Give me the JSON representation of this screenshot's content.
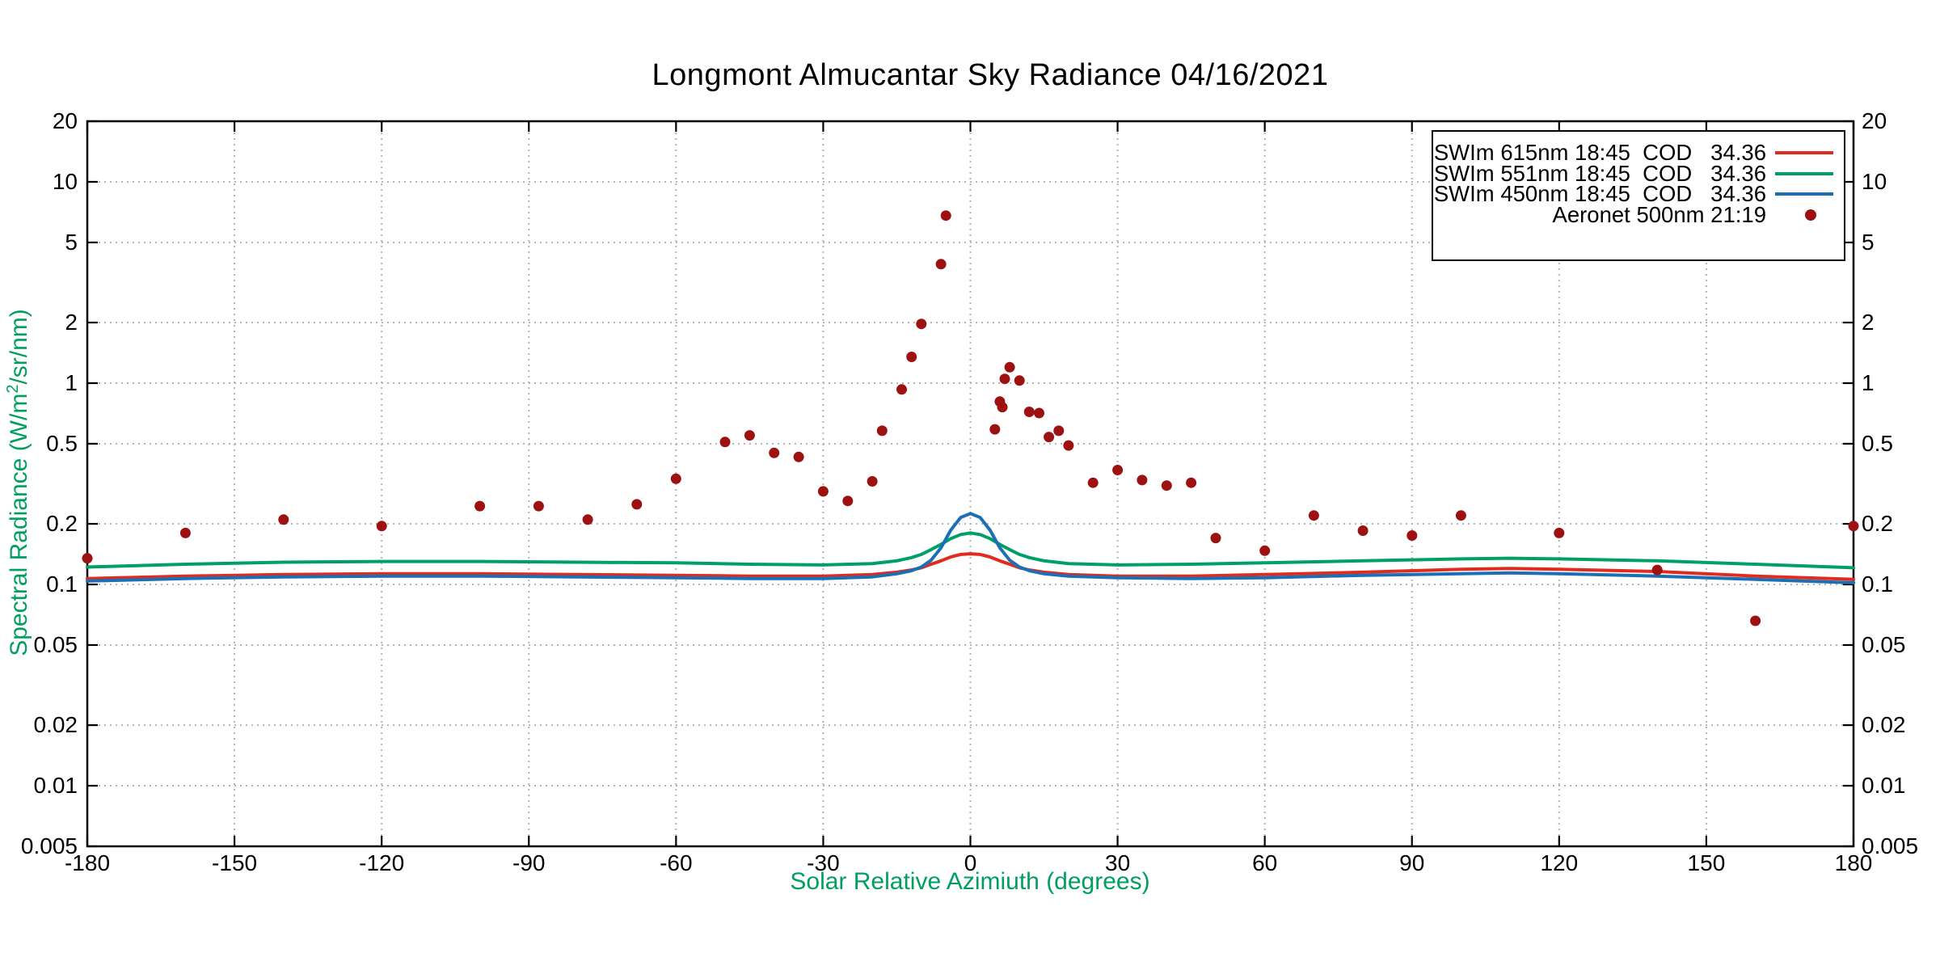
{
  "title": "Longmont Almucantar Sky Radiance 04/16/2021",
  "chart_data": {
    "type": "line+scatter",
    "title": "Longmont Almucantar Sky Radiance 04/16/2021",
    "x_axis": {
      "label": "Solar Relative Azimiuth (degrees)",
      "min": -180,
      "max": 180,
      "tick_step": 30,
      "scale": "linear",
      "ticks": [
        "-180",
        "-150",
        "-120",
        "-90",
        "-60",
        "-30",
        "0",
        "30",
        "60",
        "90",
        "120",
        "150",
        "180"
      ],
      "tick_values": [
        -180,
        -150,
        -120,
        -90,
        -60,
        -30,
        0,
        30,
        60,
        90,
        120,
        150,
        180
      ]
    },
    "y_axis": {
      "label_pre": "Spectral Radiance (W/m",
      "label_sup": "2",
      "label_post": "/sr/nm)",
      "min": 0.005,
      "max": 20,
      "scale": "log",
      "ticks": [
        "20",
        "10",
        "5",
        "2",
        "1",
        "0.5",
        "0.2",
        "0.1",
        "0.05",
        "0.02",
        "0.01",
        "0.005"
      ],
      "tick_values": [
        20,
        10,
        5,
        2,
        1,
        0.5,
        0.2,
        0.1,
        0.05,
        0.02,
        0.01,
        0.005
      ],
      "labels_on_both_sides": true
    },
    "grid": {
      "on": true,
      "color": "#b3b3b3",
      "style": "dotted"
    },
    "label_color": "#009e60",
    "legend": {
      "position": "top-right",
      "border": "#000000",
      "background": "#ffffff"
    },
    "series": [
      {
        "name": "SWIm 615nm 18:45  COD   34.36",
        "type": "line",
        "color": "#e02b1e",
        "points": [
          [
            -180,
            0.107
          ],
          [
            -160,
            0.11
          ],
          [
            -140,
            0.112
          ],
          [
            -120,
            0.113
          ],
          [
            -100,
            0.113
          ],
          [
            -80,
            0.112
          ],
          [
            -60,
            0.111
          ],
          [
            -45,
            0.11
          ],
          [
            -30,
            0.11
          ],
          [
            -20,
            0.112
          ],
          [
            -15,
            0.115
          ],
          [
            -12,
            0.118
          ],
          [
            -10,
            0.121
          ],
          [
            -8,
            0.126
          ],
          [
            -6,
            0.131
          ],
          [
            -4,
            0.137
          ],
          [
            -2,
            0.141
          ],
          [
            0,
            0.142
          ],
          [
            2,
            0.141
          ],
          [
            4,
            0.137
          ],
          [
            6,
            0.131
          ],
          [
            8,
            0.126
          ],
          [
            10,
            0.121
          ],
          [
            12,
            0.118
          ],
          [
            15,
            0.115
          ],
          [
            20,
            0.112
          ],
          [
            30,
            0.11
          ],
          [
            45,
            0.11
          ],
          [
            60,
            0.112
          ],
          [
            80,
            0.115
          ],
          [
            100,
            0.119
          ],
          [
            110,
            0.12
          ],
          [
            120,
            0.119
          ],
          [
            140,
            0.116
          ],
          [
            160,
            0.11
          ],
          [
            180,
            0.106
          ]
        ]
      },
      {
        "name": "SWIm 551nm 18:45  COD   34.36",
        "type": "line",
        "color": "#00a065",
        "points": [
          [
            -180,
            0.122
          ],
          [
            -160,
            0.126
          ],
          [
            -140,
            0.129
          ],
          [
            -120,
            0.13
          ],
          [
            -100,
            0.13
          ],
          [
            -80,
            0.129
          ],
          [
            -60,
            0.128
          ],
          [
            -45,
            0.126
          ],
          [
            -30,
            0.125
          ],
          [
            -20,
            0.127
          ],
          [
            -15,
            0.131
          ],
          [
            -12,
            0.136
          ],
          [
            -10,
            0.141
          ],
          [
            -8,
            0.149
          ],
          [
            -6,
            0.158
          ],
          [
            -4,
            0.169
          ],
          [
            -2,
            0.177
          ],
          [
            0,
            0.18
          ],
          [
            2,
            0.177
          ],
          [
            4,
            0.169
          ],
          [
            6,
            0.158
          ],
          [
            8,
            0.149
          ],
          [
            10,
            0.141
          ],
          [
            12,
            0.136
          ],
          [
            15,
            0.131
          ],
          [
            20,
            0.127
          ],
          [
            30,
            0.125
          ],
          [
            45,
            0.126
          ],
          [
            60,
            0.128
          ],
          [
            80,
            0.131
          ],
          [
            100,
            0.134
          ],
          [
            110,
            0.135
          ],
          [
            120,
            0.134
          ],
          [
            140,
            0.131
          ],
          [
            160,
            0.126
          ],
          [
            180,
            0.121
          ]
        ]
      },
      {
        "name": "SWIm 450nm 18:45  COD   34.36",
        "type": "line",
        "color": "#1b6fb5",
        "points": [
          [
            -180,
            0.104
          ],
          [
            -160,
            0.107
          ],
          [
            -140,
            0.109
          ],
          [
            -120,
            0.11
          ],
          [
            -100,
            0.11
          ],
          [
            -80,
            0.109
          ],
          [
            -60,
            0.108
          ],
          [
            -45,
            0.107
          ],
          [
            -30,
            0.107
          ],
          [
            -20,
            0.109
          ],
          [
            -15,
            0.113
          ],
          [
            -12,
            0.117
          ],
          [
            -10,
            0.122
          ],
          [
            -8,
            0.132
          ],
          [
            -6,
            0.152
          ],
          [
            -4,
            0.186
          ],
          [
            -2,
            0.215
          ],
          [
            0,
            0.225
          ],
          [
            2,
            0.215
          ],
          [
            4,
            0.186
          ],
          [
            6,
            0.152
          ],
          [
            8,
            0.132
          ],
          [
            10,
            0.122
          ],
          [
            12,
            0.117
          ],
          [
            15,
            0.113
          ],
          [
            20,
            0.11
          ],
          [
            30,
            0.108
          ],
          [
            45,
            0.107
          ],
          [
            60,
            0.108
          ],
          [
            80,
            0.111
          ],
          [
            100,
            0.113
          ],
          [
            110,
            0.114
          ],
          [
            120,
            0.113
          ],
          [
            140,
            0.11
          ],
          [
            160,
            0.106
          ],
          [
            180,
            0.102
          ]
        ]
      },
      {
        "name": "Aeronet 500nm 21:19",
        "type": "scatter",
        "color": "#9e1111",
        "marker_radius": 6.5,
        "points": [
          [
            -180,
            0.135
          ],
          [
            -160,
            0.18
          ],
          [
            -140,
            0.21
          ],
          [
            -120,
            0.195
          ],
          [
            -100,
            0.245
          ],
          [
            -88,
            0.245
          ],
          [
            -78,
            0.21
          ],
          [
            -68,
            0.25
          ],
          [
            -60,
            0.335
          ],
          [
            -50,
            0.51
          ],
          [
            -45,
            0.55
          ],
          [
            -40,
            0.45
          ],
          [
            -35,
            0.43
          ],
          [
            -30,
            0.29
          ],
          [
            -25,
            0.26
          ],
          [
            -20,
            0.325
          ],
          [
            -18,
            0.58
          ],
          [
            -14,
            0.93
          ],
          [
            -12,
            1.35
          ],
          [
            -10,
            1.97
          ],
          [
            -6,
            3.9
          ],
          [
            -5,
            6.8
          ],
          [
            5,
            0.59
          ],
          [
            6,
            0.81
          ],
          [
            6.5,
            0.76
          ],
          [
            7,
            1.05
          ],
          [
            8,
            1.2
          ],
          [
            10,
            1.03
          ],
          [
            12,
            0.72
          ],
          [
            14,
            0.71
          ],
          [
            16,
            0.54
          ],
          [
            18,
            0.58
          ],
          [
            20,
            0.49
          ],
          [
            25,
            0.32
          ],
          [
            30,
            0.37
          ],
          [
            35,
            0.33
          ],
          [
            40,
            0.31
          ],
          [
            45,
            0.32
          ],
          [
            50,
            0.17
          ],
          [
            60,
            0.147
          ],
          [
            70,
            0.22
          ],
          [
            80,
            0.185
          ],
          [
            90,
            0.175
          ],
          [
            100,
            0.22
          ],
          [
            120,
            0.18
          ],
          [
            140,
            0.118
          ],
          [
            160,
            0.066
          ],
          [
            180,
            0.195
          ]
        ]
      }
    ]
  }
}
